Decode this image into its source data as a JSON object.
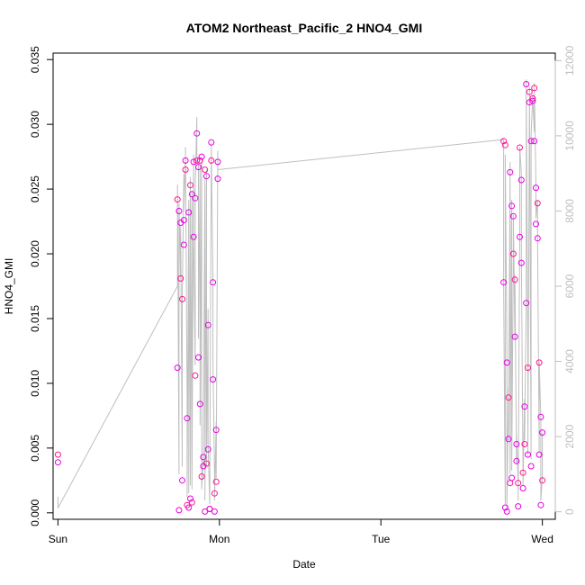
{
  "chart_data": {
    "type": "scatter",
    "title": "ATOM2 Northeast_Pacific_2 HNO4_GMI",
    "xlabel": "Date",
    "ylabel": "HNO4_GMI",
    "x_tick_labels": [
      "Sun",
      "Mon",
      "Tue",
      "Wed"
    ],
    "x_unit": "days since Sun 00:00",
    "xlim": [
      -0.03,
      3.08
    ],
    "ylim": [
      -0.0005,
      0.0355
    ],
    "y_ticks": [
      0.0,
      0.005,
      0.01,
      0.015,
      0.02,
      0.025,
      0.03,
      0.035
    ],
    "y_tick_labels": [
      "0.000",
      "0.005",
      "0.010",
      "0.015",
      "0.020",
      "0.025",
      "0.030",
      "0.035"
    ],
    "y2lim": [
      -200,
      12200
    ],
    "y2_ticks": [
      0,
      2000,
      4000,
      6000,
      8000,
      10000,
      12000
    ],
    "y2_tick_labels": [
      "0",
      "2000",
      "4000",
      "6000",
      "8000",
      "10000",
      "12000"
    ],
    "grid": false,
    "colors": {
      "points": "#e600e6",
      "points_alt": "#ff1493",
      "line": "#bfbfbf",
      "axis": "#000000",
      "right_axis": "#bfbfbf"
    },
    "series": [
      {
        "type": "scatter",
        "marker": "open-circle",
        "x": [
          0.0,
          0.0,
          0.74,
          0.74,
          0.75,
          0.75,
          0.76,
          0.76,
          0.77,
          0.77,
          0.78,
          0.78,
          0.79,
          0.79,
          0.8,
          0.8,
          0.81,
          0.81,
          0.82,
          0.82,
          0.83,
          0.83,
          0.84,
          0.84,
          0.85,
          0.85,
          0.86,
          0.86,
          0.87,
          0.87,
          0.88,
          0.88,
          0.89,
          0.89,
          0.9,
          0.9,
          0.91,
          0.91,
          0.92,
          0.92,
          0.93,
          0.93,
          0.94,
          0.94,
          0.95,
          0.95,
          0.96,
          0.96,
          0.97,
          0.97,
          0.98,
          0.98,
          0.99,
          0.99,
          2.76,
          2.76,
          2.77,
          2.77,
          2.78,
          2.78,
          2.79,
          2.79,
          2.8,
          2.8,
          2.81,
          2.81,
          2.82,
          2.82,
          2.83,
          2.83,
          2.84,
          2.84,
          2.85,
          2.85,
          2.86,
          2.86,
          2.87,
          2.87,
          2.88,
          2.88,
          2.89,
          2.89,
          2.9,
          2.9,
          2.91,
          2.91,
          2.92,
          2.92,
          2.93,
          2.93,
          2.94,
          2.94,
          2.95,
          2.95,
          2.96,
          2.96,
          2.97,
          2.97,
          2.98,
          2.98,
          2.99,
          2.99,
          3.0,
          3.0
        ],
        "y": [
          0.0045,
          0.0039,
          0.0112,
          0.0242,
          0.0002,
          0.0233,
          0.0181,
          0.0224,
          0.0025,
          0.0165,
          0.0207,
          0.0226,
          0.0265,
          0.0272,
          0.0073,
          0.0006,
          0.0232,
          0.0004,
          0.0253,
          0.0011,
          0.0246,
          0.0008,
          0.0271,
          0.0213,
          0.0106,
          0.0243,
          0.0293,
          0.0272,
          0.0267,
          0.012,
          0.0272,
          0.0084,
          0.0275,
          0.0028,
          0.0043,
          0.0036,
          0.0265,
          0.0001,
          0.026,
          0.0038,
          0.0145,
          0.0049,
          0.0003,
          0.0003,
          0.0286,
          0.0272,
          0.0178,
          0.0103,
          0.0015,
          0.0001,
          0.0064,
          0.0024,
          0.0271,
          0.0258,
          0.0287,
          0.0178,
          0.0004,
          0.0284,
          0.0116,
          0.0001,
          0.0089,
          0.0057,
          0.0263,
          0.0023,
          0.0237,
          0.0027,
          0.02,
          0.0229,
          0.0136,
          0.018,
          0.004,
          0.0053,
          0.0023,
          0.0005,
          0.0213,
          0.0282,
          0.0257,
          0.0193,
          0.0031,
          0.0019,
          0.0082,
          0.0053,
          0.0162,
          0.0331,
          0.0112,
          0.0045,
          0.0317,
          0.0325,
          0.0036,
          0.0287,
          0.032,
          0.0318,
          0.0287,
          0.0328,
          0.0251,
          0.0223,
          0.0239,
          0.0212,
          0.0045,
          0.0116,
          0.0074,
          0.0006,
          0.0025,
          0.0062
        ]
      },
      {
        "type": "line",
        "y_axis": "right",
        "x": [
          0.0,
          0.0,
          0.74,
          0.74,
          0.75,
          0.75,
          0.76,
          0.76,
          0.77,
          0.77,
          0.78,
          0.78,
          0.79,
          0.79,
          0.8,
          0.8,
          0.81,
          0.81,
          0.82,
          0.82,
          0.83,
          0.83,
          0.84,
          0.84,
          0.85,
          0.85,
          0.86,
          0.86,
          0.87,
          0.87,
          0.88,
          0.88,
          0.89,
          0.89,
          0.9,
          0.9,
          0.91,
          0.91,
          0.92,
          0.92,
          0.93,
          0.93,
          0.94,
          0.94,
          0.95,
          0.95,
          0.96,
          0.96,
          0.97,
          0.97,
          0.98,
          0.98,
          0.99,
          0.99,
          2.76,
          2.76,
          2.77,
          2.77,
          2.78,
          2.78,
          2.79,
          2.79,
          2.8,
          2.8,
          2.81,
          2.81,
          2.82,
          2.82,
          2.83,
          2.83,
          2.84,
          2.84,
          2.85,
          2.85,
          2.86,
          2.86,
          2.87,
          2.87,
          2.88,
          2.88,
          2.89,
          2.89,
          2.9,
          2.9,
          2.91,
          2.91,
          2.92,
          2.92,
          2.93,
          2.93,
          2.94,
          2.94,
          2.95,
          2.95,
          2.96,
          2.96,
          2.97,
          2.97,
          2.98,
          2.98,
          2.99,
          2.99,
          3.0,
          3.0
        ],
        "y": [
          400,
          100,
          6000,
          8700,
          1000,
          8200,
          6200,
          7600,
          1200,
          5700,
          9000,
          8000,
          9400,
          9700,
          3000,
          400,
          8300,
          500,
          8900,
          700,
          8500,
          600,
          9500,
          7400,
          3900,
          8600,
          10500,
          9500,
          9200,
          4600,
          9200,
          2300,
          9400,
          600,
          1400,
          1300,
          8900,
          300,
          9100,
          1200,
          5400,
          1800,
          200,
          200,
          9800,
          9700,
          6100,
          4000,
          900,
          300,
          2400,
          900,
          9600,
          9100,
          9900,
          6000,
          200,
          9500,
          4400,
          100,
          3300,
          1900,
          9300,
          1000,
          8300,
          1100,
          6900,
          7900,
          4600,
          6300,
          1300,
          2000,
          800,
          300,
          7400,
          9700,
          9000,
          6800,
          1200,
          700,
          3000,
          1900,
          5600,
          11500,
          4200,
          1500,
          11000,
          11300,
          1400,
          10000,
          11100,
          11000,
          10100,
          11400,
          8700,
          7800,
          8300,
          7300,
          1600,
          4000,
          2500,
          300,
          900,
          2100
        ]
      }
    ]
  }
}
